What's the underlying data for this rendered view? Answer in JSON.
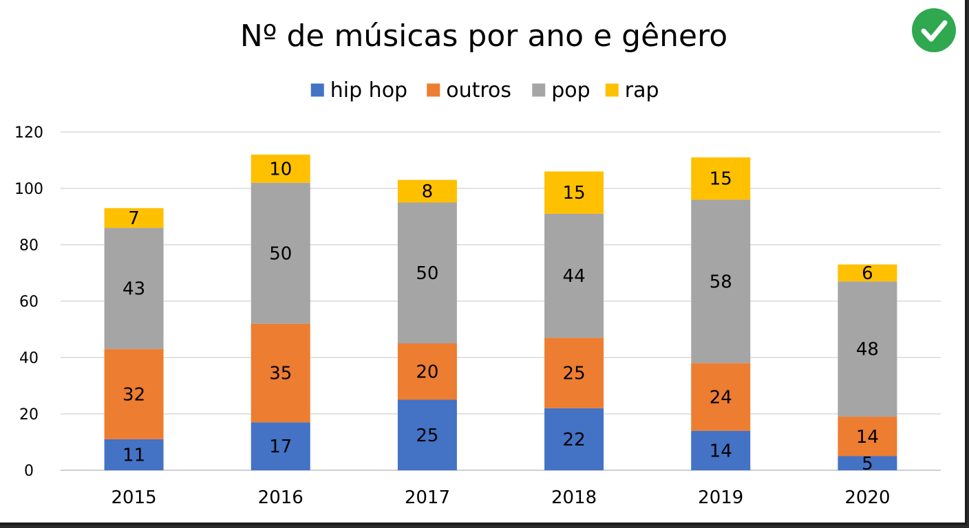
{
  "check_badge": {
    "icon": "checkmark-icon",
    "color": "#2fa84f"
  },
  "chart_data": {
    "type": "bar",
    "stacked": true,
    "title": "Nº de músicas por ano e gênero",
    "xlabel": "",
    "ylabel": "",
    "categories": [
      "2015",
      "2016",
      "2017",
      "2018",
      "2019",
      "2020"
    ],
    "series": [
      {
        "name": "hip hop",
        "color": "#4472c4",
        "values": [
          11,
          17,
          25,
          22,
          14,
          5
        ]
      },
      {
        "name": "outros",
        "color": "#ed7d31",
        "values": [
          32,
          35,
          20,
          25,
          24,
          14
        ]
      },
      {
        "name": "pop",
        "color": "#a5a5a5",
        "values": [
          43,
          50,
          50,
          44,
          58,
          48
        ]
      },
      {
        "name": "rap",
        "color": "#ffc000",
        "values": [
          7,
          10,
          8,
          15,
          15,
          6
        ]
      }
    ],
    "ylim": [
      0,
      120
    ],
    "yticks": [
      "0",
      "20",
      "40",
      "60",
      "80",
      "100",
      "120"
    ],
    "grid": true,
    "legend_position": "top",
    "data_labels": true
  }
}
